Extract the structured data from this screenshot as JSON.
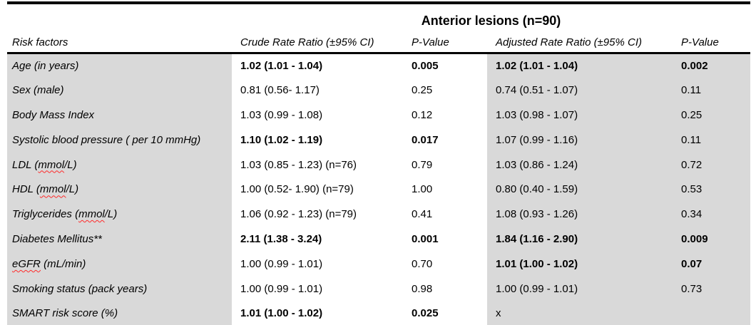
{
  "title": "Anterior lesions (n=90)",
  "columns": {
    "risk_factors": "Risk factors",
    "crude": "Crude Rate Ratio (±95% CI)",
    "crude_p": "P-Value",
    "adjusted": "Adjusted Rate Ratio (±95% CI)",
    "adjusted_p": "P-Value"
  },
  "rows": [
    {
      "label_parts": [
        {
          "text": "Age (in years)",
          "misspelled": false
        }
      ],
      "crude": "1.02 (1.01 - 1.04)",
      "crude_p": "0.005",
      "crude_bold": true,
      "adjusted": "1.02 (1.01 - 1.04)",
      "adjusted_p": "0.002",
      "adjusted_bold": true
    },
    {
      "label_parts": [
        {
          "text": "Sex (male)",
          "misspelled": false
        }
      ],
      "crude": "0.81 (0.56- 1.17)",
      "crude_p": "0.25",
      "crude_bold": false,
      "adjusted": "0.74 (0.51 - 1.07)",
      "adjusted_p": "0.11",
      "adjusted_bold": false
    },
    {
      "label_parts": [
        {
          "text": "Body Mass Index",
          "misspelled": false
        }
      ],
      "crude": "1.03 (0.99 - 1.08)",
      "crude_p": "0.12",
      "crude_bold": false,
      "adjusted": "1.03 (0.98 - 1.07)",
      "adjusted_p": "0.25",
      "adjusted_bold": false
    },
    {
      "label_parts": [
        {
          "text": "Systolic blood pressure ( per 10 mmHg)",
          "misspelled": false
        }
      ],
      "crude": "1.10 (1.02 - 1.19)",
      "crude_p": "0.017",
      "crude_bold": true,
      "adjusted": "1.07 (0.99 - 1.16)",
      "adjusted_p": "0.11",
      "adjusted_bold": false
    },
    {
      "label_parts": [
        {
          "text": "LDL (",
          "misspelled": false
        },
        {
          "text": "mmol",
          "misspelled": true
        },
        {
          "text": "/L)",
          "misspelled": false
        }
      ],
      "crude": "1.03 (0.85 - 1.23) (n=76)",
      "crude_p": "0.79",
      "crude_bold": false,
      "adjusted": "1.03 (0.86 - 1.24)",
      "adjusted_p": "0.72",
      "adjusted_bold": false
    },
    {
      "label_parts": [
        {
          "text": "HDL (",
          "misspelled": false
        },
        {
          "text": "mmol",
          "misspelled": true
        },
        {
          "text": "/L)",
          "misspelled": false
        }
      ],
      "crude": "1.00 (0.52- 1.90) (n=79)",
      "crude_p": "1.00",
      "crude_bold": false,
      "adjusted": "0.80 (0.40 - 1.59)",
      "adjusted_p": "0.53",
      "adjusted_bold": false
    },
    {
      "label_parts": [
        {
          "text": "Triglycerides (",
          "misspelled": false
        },
        {
          "text": "mmol",
          "misspelled": true
        },
        {
          "text": "/L)",
          "misspelled": false
        }
      ],
      "crude": "1.06 (0.92 - 1.23) (n=79)",
      "crude_p": "0.41",
      "crude_bold": false,
      "adjusted": "1.08 (0.93 - 1.26)",
      "adjusted_p": "0.34",
      "adjusted_bold": false
    },
    {
      "label_parts": [
        {
          "text": "Diabetes Mellitus**",
          "misspelled": false
        }
      ],
      "crude": "2.11 (1.38 - 3.24)",
      "crude_p": "0.001",
      "crude_bold": true,
      "adjusted": "1.84 (1.16 - 2.90)",
      "adjusted_p": "0.009",
      "adjusted_bold": true
    },
    {
      "label_parts": [
        {
          "text": "eGFR",
          "misspelled": true
        },
        {
          "text": " (mL/min)",
          "misspelled": false
        }
      ],
      "crude": "1.00 (0.99 - 1.01)",
      "crude_p": "0.70",
      "crude_bold": false,
      "adjusted": "1.01 (1.00 - 1.02)",
      "adjusted_p": "0.07",
      "adjusted_bold": true
    },
    {
      "label_parts": [
        {
          "text": "Smoking status (pack years)",
          "misspelled": false
        }
      ],
      "crude": "1.00 (0.99 - 1.01)",
      "crude_p": "0.98",
      "crude_bold": false,
      "adjusted": "1.00 (0.99 - 1.01)",
      "adjusted_p": "0.73",
      "adjusted_bold": false
    },
    {
      "label_parts": [
        {
          "text": "SMART risk score (%)",
          "misspelled": false
        }
      ],
      "crude": "1.01 (1.00 - 1.02)",
      "crude_p": "0.025",
      "crude_bold": true,
      "adjusted": "x",
      "adjusted_p": "",
      "adjusted_bold": false
    }
  ],
  "colors": {
    "row_shade": "#d9d9d9",
    "border": "#000000",
    "spellcheck_underline": "#ff2a2a"
  }
}
